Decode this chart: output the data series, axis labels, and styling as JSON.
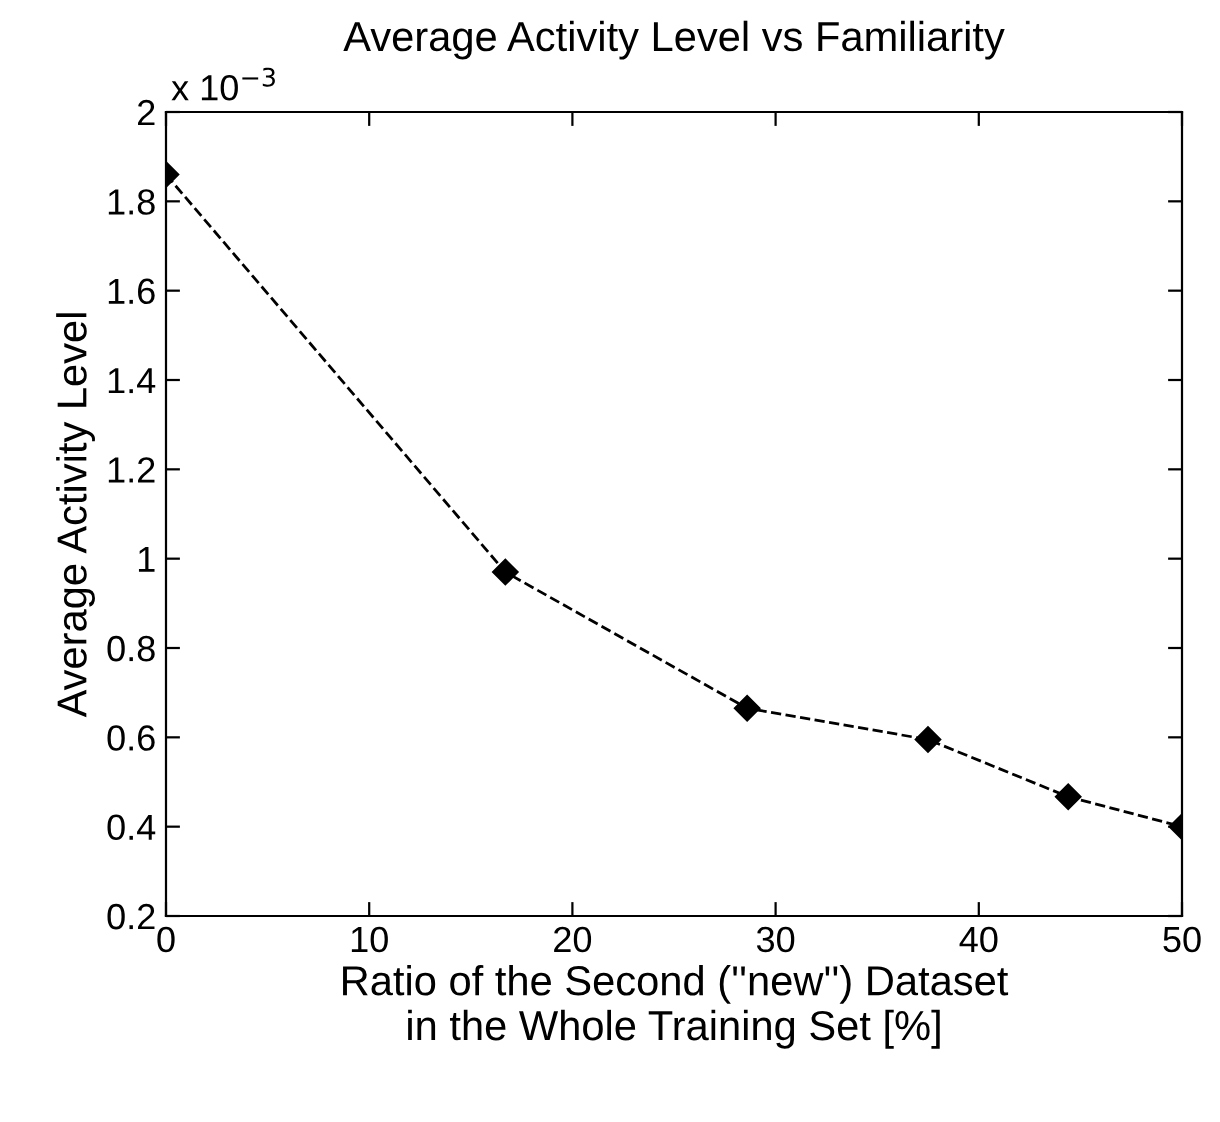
{
  "chart_data": {
    "type": "line",
    "title": "Average Activity Level vs Familiarity",
    "xlabel": "Ratio of the Second (''new'') Dataset\nin the Whole Training Set [%]",
    "ylabel": "Average Activity Level",
    "annotations": [
      "x 10$^{−3}$"
    ],
    "x": [
      0,
      16.7,
      28.6,
      37.5,
      44.4,
      50
    ],
    "series": [
      {
        "color": "#000000",
        "values": [
          1.86,
          0.97,
          0.665,
          0.595,
          0.467,
          0.4
        ]
      }
    ],
    "xlim": [
      0,
      50
    ],
    "xticks": [
      0,
      10,
      20,
      30,
      40,
      50
    ],
    "ylim": [
      0.2,
      2
    ],
    "yticks": [
      0.2,
      0.4,
      0.6,
      0.8,
      1,
      1.2,
      1.4,
      1.6,
      1.8,
      2
    ],
    "grid": false,
    "legend": false,
    "marker": "diamond",
    "line_style": "dashed"
  }
}
